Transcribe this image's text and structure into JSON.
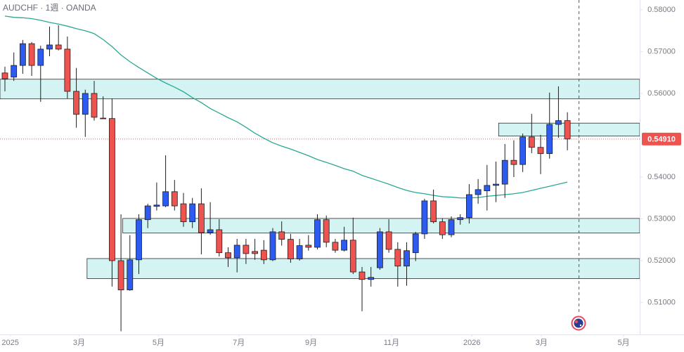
{
  "chart_data": {
    "type": "candlestick",
    "title": "AUDCHF · 1週 · OANDA",
    "categories": [
      null,
      null,
      null,
      null,
      null,
      null,
      null,
      null,
      null,
      null,
      null,
      null,
      null,
      null,
      null,
      null,
      null,
      null,
      null,
      null,
      null,
      null,
      null,
      null,
      null,
      null,
      null,
      null,
      null,
      null,
      null,
      null,
      null,
      null,
      null,
      null,
      null,
      null,
      null,
      null,
      null,
      null,
      null,
      null,
      null,
      null,
      null,
      null,
      null,
      null,
      null,
      null,
      null,
      null,
      null,
      null,
      null,
      null,
      null,
      null,
      null,
      null,
      null,
      null
    ],
    "open": [
      0.5649,
      0.5639,
      0.5667,
      0.5719,
      0.5667,
      0.5706,
      0.5716,
      0.5706,
      0.5605,
      0.555,
      0.56,
      0.5541,
      0.554,
      0.52,
      0.513,
      0.5202,
      0.5298,
      0.533,
      0.5331,
      0.5365,
      0.5336,
      0.5293,
      0.5336,
      0.5267,
      0.5274,
      0.5219,
      0.5207,
      0.5237,
      0.5222,
      0.5225,
      0.5202,
      0.5269,
      0.5251,
      0.5204,
      0.5237,
      0.5232,
      0.5298,
      0.5244,
      0.5225,
      0.5249,
      0.5173,
      0.5155,
      0.5183,
      0.5269,
      0.5227,
      0.5187,
      0.5219,
      0.5264,
      0.5343,
      0.5293,
      0.5262,
      0.5298,
      0.5303,
      0.5358,
      0.5367,
      0.538,
      0.5383,
      0.544,
      0.543,
      0.5496,
      0.5471,
      0.5456,
      0.5526,
      0.5535
    ],
    "high": [
      0.5664,
      0.5698,
      0.5728,
      0.5723,
      0.5714,
      0.576,
      0.5763,
      0.5736,
      0.5661,
      0.5609,
      0.563,
      0.5593,
      0.5588,
      0.5311,
      0.5261,
      0.5311,
      0.5336,
      0.5387,
      0.5452,
      0.5393,
      0.5362,
      0.535,
      0.5373,
      0.534,
      0.5299,
      0.5232,
      0.5252,
      0.5252,
      0.5252,
      0.5249,
      0.5278,
      0.5294,
      0.5264,
      0.5252,
      0.5261,
      0.5311,
      0.5308,
      0.5252,
      0.5281,
      0.5303,
      0.5185,
      0.5185,
      0.5278,
      0.5299,
      0.5244,
      0.5244,
      0.5269,
      0.5348,
      0.537,
      0.5301,
      0.5306,
      0.5311,
      0.5383,
      0.5395,
      0.5429,
      0.5437,
      0.5479,
      0.5488,
      0.5504,
      0.5551,
      0.5501,
      0.5602,
      0.5617,
      0.5555
    ],
    "low": [
      0.5605,
      0.563,
      0.5647,
      0.5642,
      0.558,
      0.5689,
      0.5703,
      0.5588,
      0.5518,
      0.5496,
      0.5535,
      0.5539,
      0.5138,
      0.5031,
      0.5128,
      0.5168,
      0.5278,
      0.532,
      0.5328,
      0.532,
      0.5281,
      0.5278,
      0.5215,
      0.5262,
      0.521,
      0.5185,
      0.5172,
      0.5192,
      0.5202,
      0.5192,
      0.5199,
      0.5236,
      0.5195,
      0.52,
      0.5224,
      0.5227,
      0.5232,
      0.5219,
      0.5222,
      0.5168,
      0.5079,
      0.5138,
      0.5178,
      0.5219,
      0.5138,
      0.514,
      0.5199,
      0.5252,
      0.5289,
      0.5252,
      0.5256,
      0.5286,
      0.5289,
      0.5336,
      0.532,
      0.534,
      0.535,
      0.54,
      0.5412,
      0.5457,
      0.5407,
      0.5444,
      0.5494,
      0.5464
    ],
    "close": [
      0.5635,
      0.5667,
      0.5719,
      0.5667,
      0.5706,
      0.5716,
      0.5706,
      0.5605,
      0.555,
      0.56,
      0.5543,
      0.554,
      0.52,
      0.513,
      0.5202,
      0.5298,
      0.5331,
      0.5333,
      0.5365,
      0.5331,
      0.5293,
      0.5336,
      0.5267,
      0.5274,
      0.5219,
      0.5207,
      0.5237,
      0.5217,
      0.5217,
      0.5202,
      0.5269,
      0.5251,
      0.5204,
      0.5236,
      0.5232,
      0.5298,
      0.5244,
      0.5225,
      0.5249,
      0.5173,
      0.5155,
      0.516,
      0.5269,
      0.5227,
      0.5187,
      0.5224,
      0.5264,
      0.5343,
      0.5293,
      0.5262,
      0.5298,
      0.5303,
      0.5358,
      0.537,
      0.538,
      0.5383,
      0.544,
      0.543,
      0.5496,
      0.5471,
      0.5456,
      0.5526,
      0.5535,
      0.5491
    ],
    "up_color": "#2e5bef",
    "down_color": "#ef5350",
    "ma": {
      "color": "#2aa895",
      "values": [
        0.5785,
        0.5782,
        0.5781,
        0.5779,
        0.5775,
        0.577,
        0.5766,
        0.5761,
        0.5755,
        0.575,
        0.5743,
        0.5729,
        0.5712,
        0.5692,
        0.5676,
        0.5662,
        0.5649,
        0.5636,
        0.5625,
        0.5615,
        0.5604,
        0.559,
        0.5578,
        0.5564,
        0.5553,
        0.5542,
        0.5532,
        0.5519,
        0.5505,
        0.5493,
        0.5482,
        0.5474,
        0.5467,
        0.5459,
        0.5451,
        0.5442,
        0.5435,
        0.5428,
        0.542,
        0.5414,
        0.5404,
        0.5397,
        0.539,
        0.5383,
        0.5375,
        0.5368,
        0.5363,
        0.536,
        0.5356,
        0.5353,
        0.5352,
        0.535,
        0.535,
        0.5351,
        0.5354,
        0.5356,
        0.5358,
        0.536,
        0.5363,
        0.5368,
        0.5373,
        0.5378,
        0.5383,
        0.5388
      ]
    },
    "zones": [
      {
        "from": -0.55,
        "to": 71.1,
        "top": 0.5634,
        "bottom": 0.5587
      },
      {
        "from": 55.3,
        "to": 71.1,
        "top": 0.5529,
        "bottom": 0.5498
      },
      {
        "from": 13.2,
        "to": 71.1,
        "top": 0.5301,
        "bottom": 0.5266
      },
      {
        "from": 9.2,
        "to": 71.1,
        "top": 0.5205,
        "bottom": 0.5157
      }
    ],
    "zone_color": "#d4f4f4",
    "last_price": {
      "value": 0.5491,
      "label": "0.54910"
    },
    "marker_x": 64.3,
    "xlim": [
      -0.55,
      71.1
    ],
    "xticks": [
      {
        "value": 0.6,
        "label": "2025"
      },
      {
        "value": 8.3,
        "label": "3月"
      },
      {
        "value": 17.2,
        "label": "5月"
      },
      {
        "value": 26.2,
        "label": "7月"
      },
      {
        "value": 34.3,
        "label": "9月"
      },
      {
        "value": 43.3,
        "label": "11月"
      },
      {
        "value": 52.3,
        "label": "2026"
      },
      {
        "value": 60.1,
        "label": "3月"
      },
      {
        "value": 69.3,
        "label": "5月"
      }
    ],
    "ylim": [
      0.50252,
      0.58235
    ],
    "yticks": [
      {
        "value": 0.58,
        "label": "0.58000"
      },
      {
        "value": 0.57,
        "label": "0.57000"
      },
      {
        "value": 0.56,
        "label": "0.56000"
      },
      {
        "value": 0.54,
        "label": "0.54000"
      },
      {
        "value": 0.53,
        "label": "0.53000"
      },
      {
        "value": 0.52,
        "label": "0.52000"
      },
      {
        "value": 0.51,
        "label": "0.51000"
      }
    ]
  }
}
